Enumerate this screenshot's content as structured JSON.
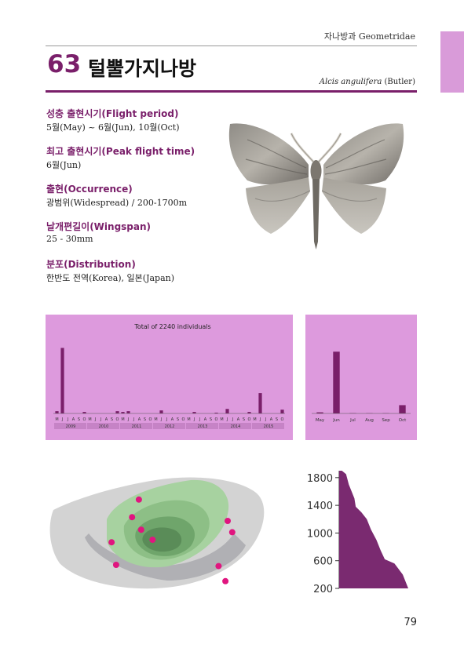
{
  "header": {
    "family": "자나방과 Geometridae",
    "species_number": "63",
    "korean_name": "털뿔가지나방",
    "scientific_name": "Alcis angulifera",
    "author": "(Butler)"
  },
  "info": [
    {
      "label": "성충 출현시기(Flight period)",
      "value": "5월(May) ~ 6월(Jun), 10월(Oct)"
    },
    {
      "label": "최고 출현시기(Peak flight time)",
      "value": "6월(Jun)"
    },
    {
      "label": "출현(Occurrence)",
      "value": "광범위(Widespread) / 200-1700m"
    },
    {
      "label": "날개편길이(Wingspan)",
      "value": "25 - 30mm"
    },
    {
      "label": "분포(Distribution)",
      "value": "한반도 전역(Korea), 일본(Japan)"
    }
  ],
  "page_number": "79",
  "colors": {
    "accent": "#7a1f6a",
    "panel": "#dd9add",
    "tab": "#d99bd9"
  },
  "chart_data": [
    {
      "type": "bar",
      "title": "Total of 2240 individuals",
      "month_labels": [
        "M",
        "J",
        "J",
        "A",
        "S",
        "O"
      ],
      "years": [
        "2009",
        "2010",
        "2011",
        "2012",
        "2013",
        "2014",
        "2015"
      ],
      "values": [
        [
          3,
          87,
          0,
          0,
          0,
          2
        ],
        [
          0,
          0,
          0,
          0,
          0,
          3
        ],
        [
          2,
          3,
          0,
          0,
          0,
          0
        ],
        [
          0,
          4,
          0,
          0,
          0,
          0
        ],
        [
          0,
          2,
          0,
          0,
          0,
          1
        ],
        [
          0,
          6,
          0,
          0,
          0,
          2
        ],
        [
          0,
          27,
          0,
          0,
          0,
          5
        ]
      ],
      "ylim": [
        0,
        100
      ]
    },
    {
      "type": "bar",
      "categories": [
        "May",
        "Jun",
        "Jul",
        "Aug",
        "Sep",
        "Oct"
      ],
      "values": [
        1.5,
        82,
        0.4,
        0.3,
        0.3,
        11
      ],
      "ylim": [
        0,
        100
      ]
    },
    {
      "type": "area",
      "yticks": [
        1800,
        1400,
        1000,
        600,
        200
      ],
      "ylim": [
        200,
        1900
      ],
      "profile": [
        {
          "alt": 1900,
          "w": 0.04
        },
        {
          "alt": 1850,
          "w": 0.1
        },
        {
          "alt": 1700,
          "w": 0.14
        },
        {
          "alt": 1500,
          "w": 0.22
        },
        {
          "alt": 1380,
          "w": 0.24
        },
        {
          "alt": 1300,
          "w": 0.32
        },
        {
          "alt": 1200,
          "w": 0.4
        },
        {
          "alt": 1050,
          "w": 0.46
        },
        {
          "alt": 900,
          "w": 0.54
        },
        {
          "alt": 750,
          "w": 0.6
        },
        {
          "alt": 620,
          "w": 0.66
        },
        {
          "alt": 560,
          "w": 0.8
        },
        {
          "alt": 400,
          "w": 0.92
        },
        {
          "alt": 200,
          "w": 1.0
        }
      ]
    }
  ],
  "map": {
    "points": [
      [
        0.41,
        0.23
      ],
      [
        0.38,
        0.37
      ],
      [
        0.29,
        0.57
      ],
      [
        0.42,
        0.47
      ],
      [
        0.47,
        0.55
      ],
      [
        0.8,
        0.4
      ],
      [
        0.82,
        0.49
      ],
      [
        0.31,
        0.75
      ],
      [
        0.76,
        0.76
      ],
      [
        0.79,
        0.88
      ]
    ]
  }
}
